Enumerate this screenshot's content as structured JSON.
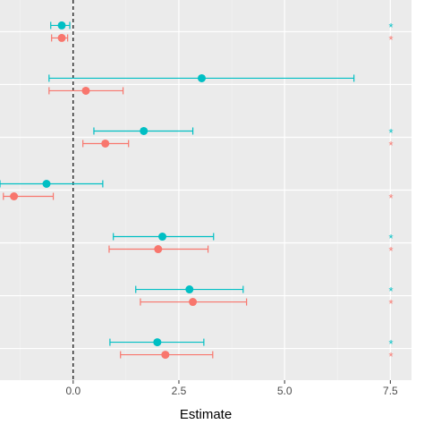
{
  "chart_data": {
    "type": "forest",
    "x_label": "Estimate",
    "categories": [
      null,
      null,
      null,
      null,
      null,
      null,
      null
    ],
    "xlim": [
      -1.73,
      8.0
    ],
    "xticks": [
      {
        "value": 0,
        "label": "0.0"
      },
      {
        "value": 2.5,
        "label": "2.5"
      },
      {
        "value": 5,
        "label": "5.0"
      },
      {
        "value": 7.5,
        "label": "7.5"
      }
    ],
    "vline": 0,
    "grid": true,
    "series": [
      {
        "color": "#00BFC4",
        "values": [
          -0.27,
          3.04,
          1.67,
          -0.63,
          2.11,
          2.75,
          1.99
        ],
        "lower": [
          -0.53,
          -0.57,
          0.49,
          -1.73,
          0.95,
          1.48,
          0.87
        ],
        "upper": [
          -0.08,
          6.64,
          2.83,
          0.7,
          3.32,
          4.02,
          3.09
        ],
        "labels": [
          "*",
          null,
          "*",
          null,
          "*",
          "*",
          "*"
        ]
      },
      {
        "color": "#F8766D",
        "values": [
          -0.27,
          0.3,
          0.76,
          -1.4,
          2.01,
          2.83,
          2.18
        ],
        "lower": [
          -0.51,
          -0.57,
          0.23,
          -1.65,
          0.85,
          1.59,
          1.12
        ],
        "upper": [
          -0.13,
          1.18,
          1.31,
          -0.47,
          3.19,
          4.1,
          3.3
        ],
        "labels": [
          "*",
          null,
          "*",
          "*",
          "*",
          "*",
          "*"
        ]
      }
    ]
  }
}
